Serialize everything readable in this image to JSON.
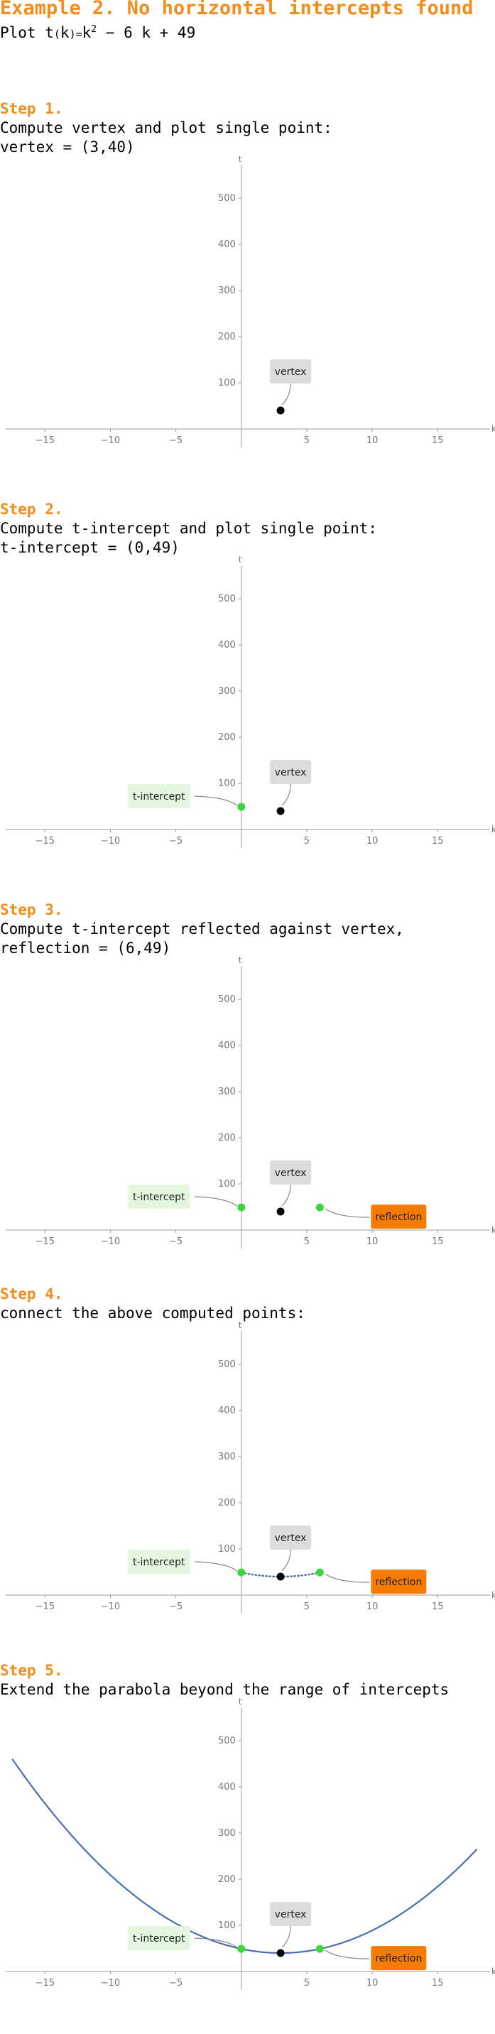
{
  "title": "Example 2. No horizontal intercepts found",
  "plot": {
    "prefix": "Plot",
    "fname": "t",
    "var": "k",
    "exp": "2",
    "rest": "− 6 k + 49"
  },
  "steps": [
    {
      "heading": "Step 1.",
      "lines": [
        "Compute vertex and plot single point:",
        "vertex = (3,40)"
      ]
    },
    {
      "heading": "Step 2.",
      "lines": [
        "Compute t-intercept and plot single point:",
        "t-intercept = (0,49)"
      ]
    },
    {
      "heading": "Step 3.",
      "lines": [
        "Compute t-intercept reflected against vertex,",
        "reflection = (6,49)"
      ]
    },
    {
      "heading": "Step 4.",
      "lines": [
        "connect the above computed points:"
      ]
    },
    {
      "heading": "Step 5.",
      "lines": [
        "Extend the parabola beyond the range of intercepts"
      ]
    }
  ],
  "colors": {
    "accent": "#f28c1c",
    "vertex_point": "#000000",
    "intercept_point": "#3ad63a",
    "curve": "#4a6fb0",
    "vertex_label_bg": "#dcdcdc",
    "intercept_label_bg": "#e3f7df",
    "reflection_label_bg": "#f57c00"
  },
  "chart_data": [
    {
      "type": "scatter",
      "xlabel": "k",
      "ylabel": "t",
      "xlim": [
        -18,
        19
      ],
      "ylim": [
        -10,
        560
      ],
      "xticks": [
        -15,
        -10,
        -5,
        5,
        10,
        15
      ],
      "yticks": [
        100,
        200,
        300,
        400,
        500
      ],
      "points": [
        {
          "label": "vertex",
          "kind": "vertex",
          "x": 3,
          "y": 40
        }
      ],
      "dotted": false,
      "curve": false
    },
    {
      "type": "scatter",
      "xlabel": "k",
      "ylabel": "t",
      "xlim": [
        -18,
        19
      ],
      "ylim": [
        -10,
        560
      ],
      "xticks": [
        -15,
        -10,
        -5,
        5,
        10,
        15
      ],
      "yticks": [
        100,
        200,
        300,
        400,
        500
      ],
      "points": [
        {
          "label": "t-intercept",
          "kind": "intercept",
          "x": 0,
          "y": 49
        },
        {
          "label": "vertex",
          "kind": "vertex",
          "x": 3,
          "y": 40
        }
      ],
      "dotted": false,
      "curve": false
    },
    {
      "type": "scatter",
      "xlabel": "k",
      "ylabel": "t",
      "xlim": [
        -18,
        19
      ],
      "ylim": [
        -10,
        560
      ],
      "xticks": [
        -15,
        -10,
        -5,
        5,
        10,
        15
      ],
      "yticks": [
        100,
        200,
        300,
        400,
        500
      ],
      "points": [
        {
          "label": "t-intercept",
          "kind": "intercept",
          "x": 0,
          "y": 49
        },
        {
          "label": "vertex",
          "kind": "vertex",
          "x": 3,
          "y": 40
        },
        {
          "label": "reflection",
          "kind": "reflection",
          "x": 6,
          "y": 49
        }
      ],
      "dotted": false,
      "curve": false
    },
    {
      "type": "line",
      "xlabel": "k",
      "ylabel": "t",
      "xlim": [
        -18,
        19
      ],
      "ylim": [
        -10,
        560
      ],
      "xticks": [
        -15,
        -10,
        -5,
        5,
        10,
        15
      ],
      "yticks": [
        100,
        200,
        300,
        400,
        500
      ],
      "points": [
        {
          "label": "t-intercept",
          "kind": "intercept",
          "x": 0,
          "y": 49
        },
        {
          "label": "vertex",
          "kind": "vertex",
          "x": 3,
          "y": 40
        },
        {
          "label": "reflection",
          "kind": "reflection",
          "x": 6,
          "y": 49
        }
      ],
      "dotted": true,
      "dotted_range": [
        0,
        6
      ],
      "curve": false
    },
    {
      "type": "line",
      "xlabel": "k",
      "ylabel": "t",
      "xlim": [
        -18,
        19
      ],
      "ylim": [
        -10,
        560
      ],
      "xticks": [
        -15,
        -10,
        -5,
        5,
        10,
        15
      ],
      "yticks": [
        100,
        200,
        300,
        400,
        500
      ],
      "points": [
        {
          "label": "t-intercept",
          "kind": "intercept",
          "x": 0,
          "y": 49
        },
        {
          "label": "vertex",
          "kind": "vertex",
          "x": 3,
          "y": 40
        },
        {
          "label": "reflection",
          "kind": "reflection",
          "x": 6,
          "y": 49
        }
      ],
      "dotted": false,
      "curve": true,
      "curve_range": [
        -17.5,
        18
      ]
    }
  ]
}
